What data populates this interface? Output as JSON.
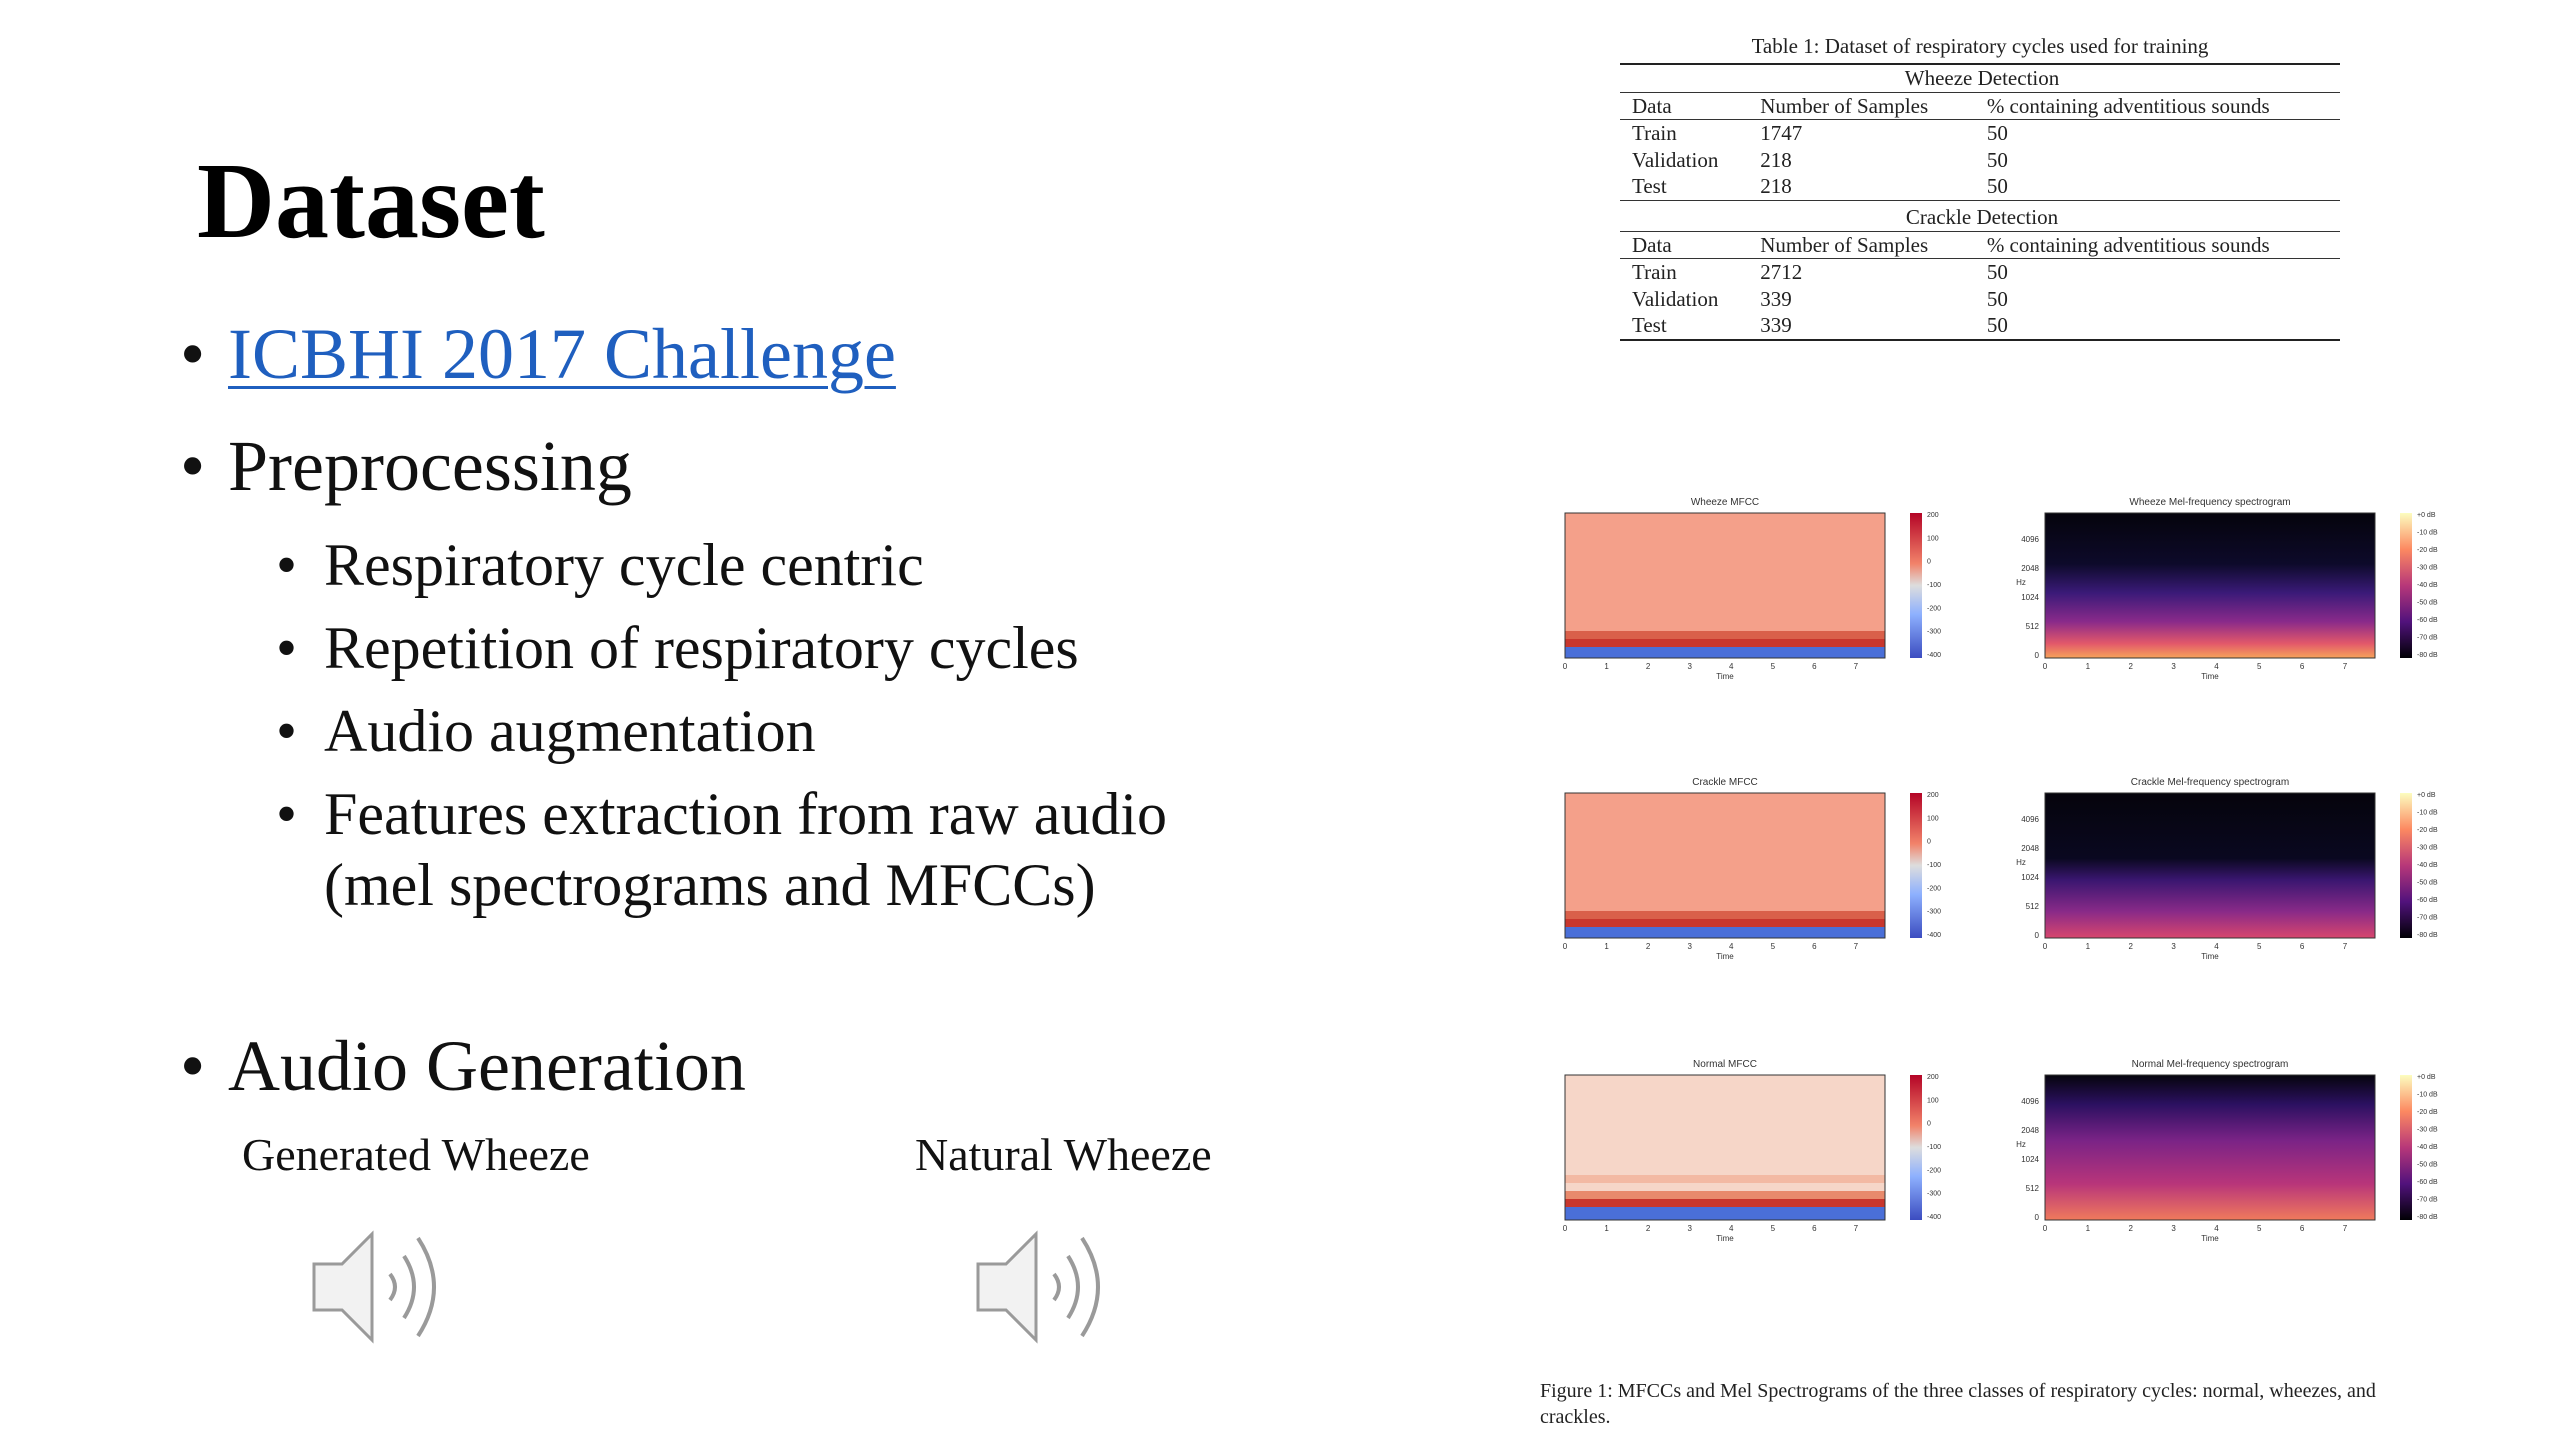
{
  "slide": {
    "title": "Dataset",
    "bullets": {
      "challenge_link": "ICBHI 2017 Challenge",
      "preprocessing": "Preprocessing",
      "sub": [
        "Respiratory cycle centric",
        "Repetition of respiratory cycles",
        "Audio augmentation",
        "Features extraction from raw audio",
        "(mel spectrograms and MFCCs)"
      ],
      "audio_generation": "Audio Generation"
    },
    "audio": {
      "generated_label": "Generated Wheeze",
      "natural_label": "Natural Wheeze",
      "icon": "speaker-icon"
    }
  },
  "table": {
    "caption": "Table 1: Dataset of respiratory cycles used for training",
    "columns": [
      "Data",
      "Number of Samples",
      "% containing adventitious sounds"
    ],
    "sections": [
      {
        "title": "Wheeze Detection",
        "rows": [
          [
            "Train",
            "1747",
            "50"
          ],
          [
            "Validation",
            "218",
            "50"
          ],
          [
            "Test",
            "218",
            "50"
          ]
        ]
      },
      {
        "title": "Crackle Detection",
        "rows": [
          [
            "Train",
            "2712",
            "50"
          ],
          [
            "Validation",
            "339",
            "50"
          ],
          [
            "Test",
            "339",
            "50"
          ]
        ]
      }
    ]
  },
  "figure": {
    "caption": "Figure 1: MFCCs and Mel Spectrograms of the three classes of respiratory cycles: normal, wheezes, and crackles.",
    "mfcc_titles": [
      "Wheeze MFCC",
      "Crackle MFCC",
      "Normal MFCC"
    ],
    "mel_titles": [
      "Wheeze Mel-frequency spectrogram",
      "Crackle Mel-frequency spectrogram",
      "Normal Mel-frequency spectrogram"
    ],
    "x_label": "Time",
    "x_ticks": [
      "0",
      "1",
      "2",
      "3",
      "4",
      "5",
      "6",
      "7"
    ],
    "mel_y_label": "Hz",
    "mel_y_ticks": [
      "4096",
      "2048",
      "1024",
      "512",
      "0"
    ],
    "mfcc_colorbar_ticks": [
      "200",
      "100",
      "0",
      "-100",
      "-200",
      "-300",
      "-400"
    ],
    "mel_colorbar_ticks": [
      "+0 dB",
      "-10 dB",
      "-20 dB",
      "-30 dB",
      "-40 dB",
      "-50 dB",
      "-60 dB",
      "-70 dB",
      "-80 dB"
    ],
    "colors": {
      "mfcc_base": "#f4a08a",
      "mfcc_normal_base": "#f6d6c8",
      "mfcc_red_band": "#c8372d",
      "mfcc_blue_band": "#4a6fd8",
      "mel_dark": "#0a0a14"
    }
  }
}
